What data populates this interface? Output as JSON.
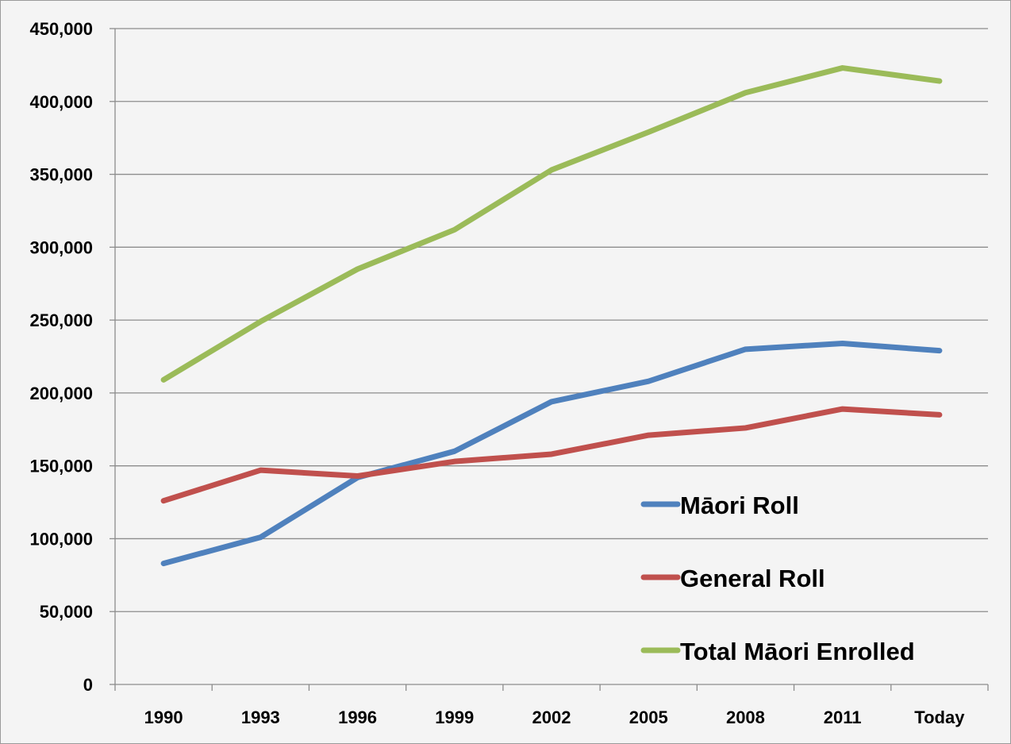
{
  "chart_data": {
    "type": "line",
    "title": "",
    "xlabel": "",
    "ylabel": "",
    "categories": [
      "1990",
      "1993",
      "1996",
      "1999",
      "2002",
      "2005",
      "2008",
      "2011",
      "Today"
    ],
    "ylim": [
      0,
      450000
    ],
    "yticks": [
      0,
      50000,
      100000,
      150000,
      200000,
      250000,
      300000,
      350000,
      400000,
      450000
    ],
    "ytick_labels": [
      "0",
      "50,000",
      "100,000",
      "150,000",
      "200,000",
      "250,000",
      "300,000",
      "350,000",
      "400,000",
      "450,000"
    ],
    "grid": "horizontal",
    "legend_placement": "bottom-right",
    "series": [
      {
        "name": "Māori Roll",
        "color": "#4f81bd",
        "values": [
          83000,
          101000,
          142000,
          160000,
          194000,
          208000,
          230000,
          234000,
          229000
        ]
      },
      {
        "name": "General Roll",
        "color": "#c0504d",
        "values": [
          126000,
          147000,
          143000,
          153000,
          158000,
          171000,
          176000,
          189000,
          185000
        ]
      },
      {
        "name": "Total Māori Enrolled",
        "color": "#9bbb59",
        "values": [
          209000,
          249000,
          285000,
          312000,
          353000,
          379000,
          406000,
          423000,
          414000
        ]
      }
    ]
  }
}
